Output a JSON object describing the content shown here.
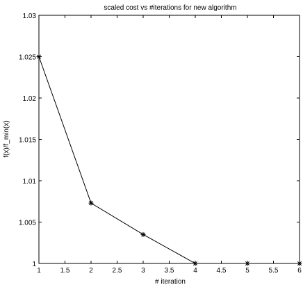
{
  "chart_data": {
    "type": "line",
    "title": "scaled cost vs #iterations for new algorithm",
    "xlabel": "# iteration",
    "ylabel": "f(x)/f_min(x)",
    "xlim": [
      1,
      6
    ],
    "ylim": [
      1,
      1.03
    ],
    "xticks": [
      "1",
      "1.5",
      "2",
      "2.5",
      "3",
      "3.5",
      "4",
      "4.5",
      "5",
      "5.5",
      "6"
    ],
    "yticks": [
      "1",
      "1.005",
      "1.01",
      "1.015",
      "1.02",
      "1.025",
      "1.03"
    ],
    "grid": false,
    "series": [
      {
        "x": [
          1,
          2,
          3,
          4,
          5,
          6
        ],
        "y": [
          1.025,
          1.0073,
          1.0035,
          1.0,
          1.0,
          1.0
        ],
        "marker": "asterisk",
        "color": "#000000"
      }
    ]
  }
}
